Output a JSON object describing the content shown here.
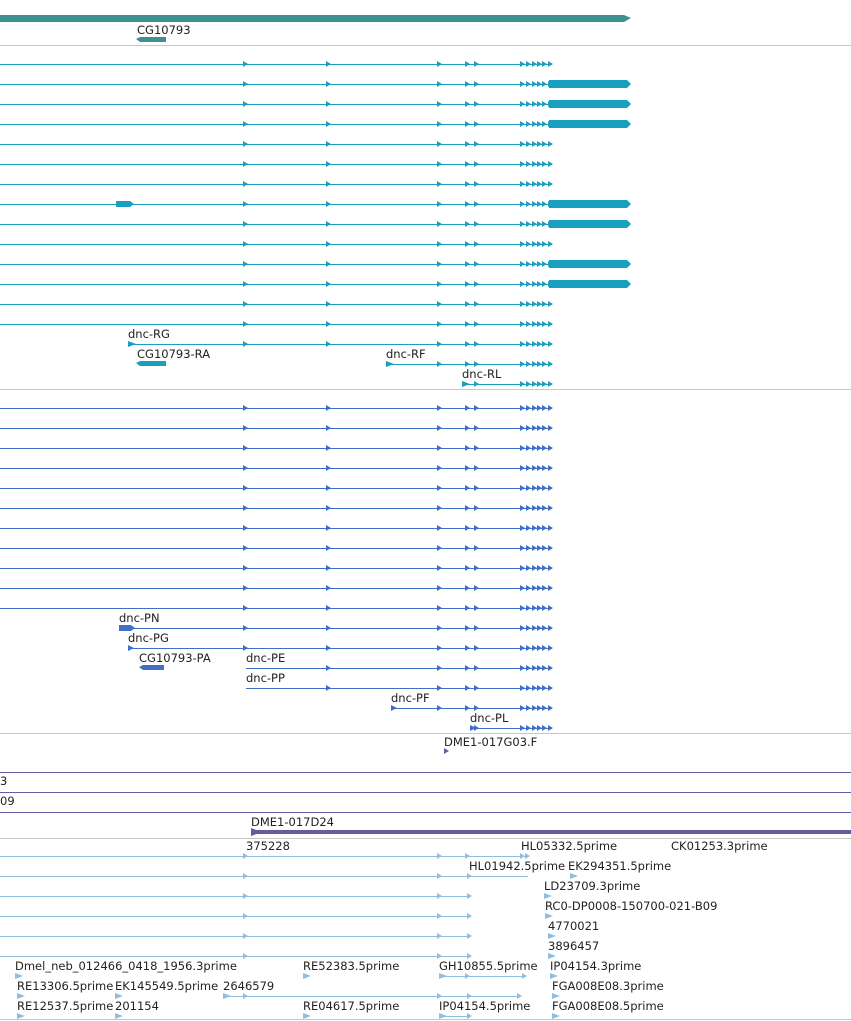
{
  "colors": {
    "gene": "#40908f",
    "transcript": "#1a9fbf",
    "protein": "#3f6fc8",
    "cdna": "#8fbfe0",
    "contig": "#6a5a9e",
    "separator": "#c8c8c8"
  },
  "gene_track": {
    "label": "CG10793"
  },
  "transcript_track": {
    "labels": [
      "dnc-RG",
      "CG10793-RA",
      "dnc-RF",
      "dnc-RL"
    ]
  },
  "protein_track": {
    "labels": [
      "dnc-PN",
      "dnc-PG",
      "CG10793-PA",
      "dnc-PE",
      "dnc-PP",
      "dnc-PF",
      "dnc-PL"
    ]
  },
  "sequence_track": {
    "label": "DME1-017G03.F"
  },
  "contig_track": {
    "labels": [
      "3",
      "09",
      "DME1-017D24"
    ]
  },
  "cdna_track": {
    "labels": [
      "375228",
      "HL05332.5prime",
      "CK01253.3prime",
      "HL01942.5prime",
      "EK294351.5prime",
      "LD23709.3prime",
      "RC0-DP0008-150700-021-B09",
      "4770021",
      "3896457",
      "Dmel_neb_012466_0418_1956.3prime",
      "RE52383.5prime",
      "GH10855.5prime",
      "IP04154.3prime",
      "RE13306.5prime",
      "EK145549.5prime",
      "2646579",
      "FGA008E08.3prime",
      "RE12537.5prime",
      "201154",
      "RE04617.5prime",
      "IP04154.5prime",
      "FGA008E08.5prime"
    ]
  }
}
